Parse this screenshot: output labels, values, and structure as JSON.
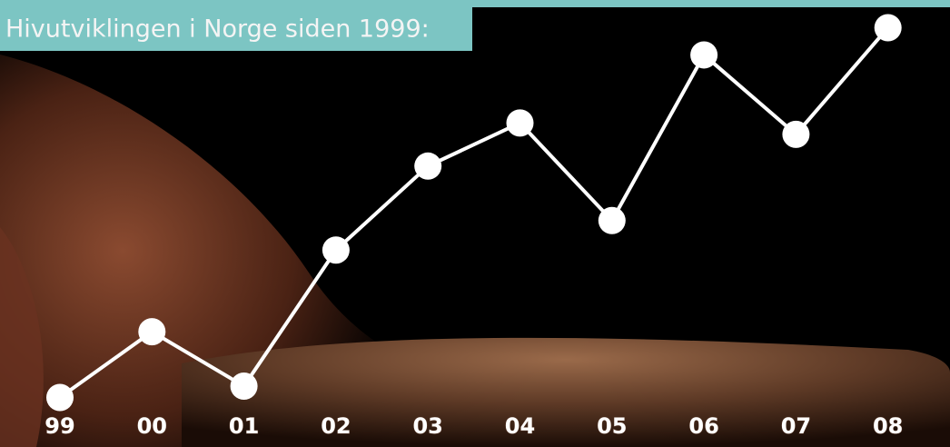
{
  "chart_data": {
    "type": "line",
    "title": "Hivutviklingen i Norge siden 1999:",
    "categories": [
      "99",
      "00",
      "01",
      "02",
      "03",
      "04",
      "05",
      "06",
      "07",
      "08"
    ],
    "values": [
      137,
      166,
      142,
      202,
      239,
      258,
      215,
      288,
      253,
      300
    ],
    "color": "#ffffff",
    "ylim": [
      130,
      305
    ]
  }
}
